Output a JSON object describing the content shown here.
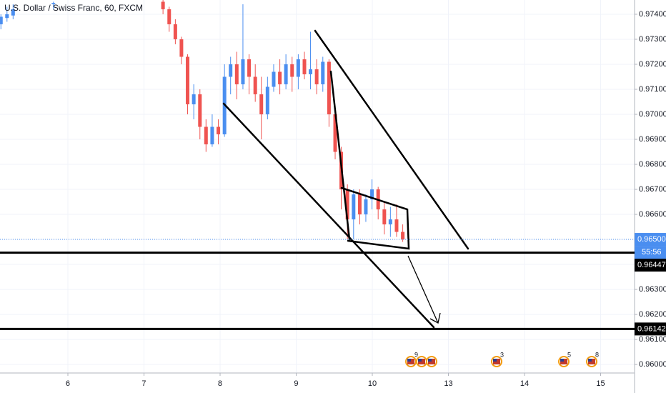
{
  "chart_data": {
    "type": "candlestick",
    "title": "U.S. Dollar / Swiss Franc, 60, FXCM",
    "x": [
      5.12,
      5.2,
      5.28,
      5.81,
      7.25,
      7.331,
      7.412,
      7.492,
      7.573,
      7.654,
      7.735,
      7.815,
      7.896,
      7.977,
      8.058,
      8.138,
      8.219,
      8.3,
      8.381,
      8.462,
      8.542,
      8.623,
      8.704,
      8.785,
      8.865,
      8.946,
      9.027,
      9.108,
      9.188,
      9.269,
      9.35,
      9.431,
      9.512,
      9.592,
      9.673,
      9.754,
      9.835,
      9.915,
      9.996,
      10.077,
      10.158,
      10.238,
      10.319,
      10.4
    ],
    "open": [
      0.9736,
      0.97385,
      0.97395,
      0.9744,
      0.9745,
      0.9742,
      0.9736,
      0.973,
      0.9723,
      0.9704,
      0.9708,
      0.9695,
      0.9688,
      0.9695,
      0.9692,
      0.9715,
      0.972,
      0.9712,
      0.9722,
      0.9715,
      0.9708,
      0.97,
      0.9711,
      0.9717,
      0.9712,
      0.972,
      0.9715,
      0.9722,
      0.9716,
      0.9718,
      0.9712,
      0.9721,
      0.97,
      0.9685,
      0.967,
      0.9658,
      0.9668,
      0.966,
      0.9666,
      0.967,
      0.9662,
      0.9656,
      0.9658,
      0.9653
    ],
    "high": [
      0.974,
      0.9743,
      0.9744,
      0.9745,
      0.97457,
      0.9743,
      0.9738,
      0.9731,
      0.9724,
      0.9712,
      0.971,
      0.9698,
      0.97,
      0.9698,
      0.972,
      0.9723,
      0.9725,
      0.9744,
      0.9724,
      0.972,
      0.9715,
      0.9715,
      0.972,
      0.9722,
      0.9724,
      0.9723,
      0.9724,
      0.9725,
      0.9733,
      0.9722,
      0.9723,
      0.9722,
      0.9702,
      0.9687,
      0.9672,
      0.967,
      0.967,
      0.9668,
      0.9674,
      0.9671,
      0.9665,
      0.9663,
      0.9664,
      0.9656
    ],
    "low": [
      0.9734,
      0.9737,
      0.9738,
      0.9742,
      0.974,
      0.9733,
      0.9728,
      0.972,
      0.97,
      0.9698,
      0.969,
      0.9685,
      0.9687,
      0.9688,
      0.9691,
      0.9708,
      0.9706,
      0.971,
      0.9708,
      0.9705,
      0.969,
      0.9698,
      0.9709,
      0.9708,
      0.971,
      0.9709,
      0.971,
      0.9714,
      0.971,
      0.9708,
      0.9709,
      0.9695,
      0.9682,
      0.9662,
      0.965,
      0.965,
      0.9656,
      0.9657,
      0.9662,
      0.9658,
      0.9652,
      0.9651,
      0.9651,
      0.9649
    ],
    "close": [
      0.9739,
      0.974,
      0.9742,
      0.97445,
      0.9742,
      0.9736,
      0.973,
      0.9723,
      0.9704,
      0.9708,
      0.9695,
      0.9688,
      0.9695,
      0.9692,
      0.9715,
      0.972,
      0.9712,
      0.9722,
      0.9715,
      0.9708,
      0.97,
      0.9711,
      0.9717,
      0.9712,
      0.972,
      0.9715,
      0.9722,
      0.9716,
      0.9718,
      0.9712,
      0.9721,
      0.97,
      0.9685,
      0.967,
      0.9658,
      0.9668,
      0.966,
      0.9666,
      0.967,
      0.9662,
      0.9656,
      0.9658,
      0.9653,
      0.965
    ],
    "up_color": "#4a8ef0",
    "down_color": "#ef5350",
    "xlim": [
      5.108,
      13.446
    ],
    "ylim": [
      0.95966,
      0.97457
    ],
    "xticks": [
      6,
      7,
      8,
      9,
      10,
      {
        "value": 11,
        "label": "13"
      },
      {
        "value": 12,
        "label": "14"
      },
      {
        "value": 13,
        "label": "15"
      }
    ],
    "yticks": [
      {
        "value": 0.96,
        "label": "0.96000"
      },
      {
        "value": 0.961,
        "label": "0.96100"
      },
      {
        "value": 0.962,
        "label": "0.96200"
      },
      {
        "value": 0.963,
        "label": "0.96300"
      },
      {
        "value": 0.964,
        "label": "0.96400"
      },
      {
        "value": 0.965,
        "label": "0.96500"
      },
      {
        "value": 0.966,
        "label": "0.96600"
      },
      {
        "value": 0.967,
        "label": "0.96700"
      },
      {
        "value": 0.968,
        "label": "0.96800"
      },
      {
        "value": 0.969,
        "label": "0.96900"
      },
      {
        "value": 0.97,
        "label": "0.97000"
      },
      {
        "value": 0.971,
        "label": "0.97100"
      },
      {
        "value": 0.972,
        "label": "0.97200"
      },
      {
        "value": 0.973,
        "label": "0.97300"
      },
      {
        "value": 0.974,
        "label": "0.97400"
      }
    ],
    "grid": true,
    "current_price": {
      "value": 0.965,
      "label": "0.96500"
    },
    "countdown": "55:56",
    "price_lines": [
      {
        "value": 0.96447,
        "label": "0.96447"
      },
      {
        "value": 0.96142,
        "label": "0.96142"
      }
    ],
    "events": [
      "9",
      "3",
      "5",
      "8"
    ]
  }
}
